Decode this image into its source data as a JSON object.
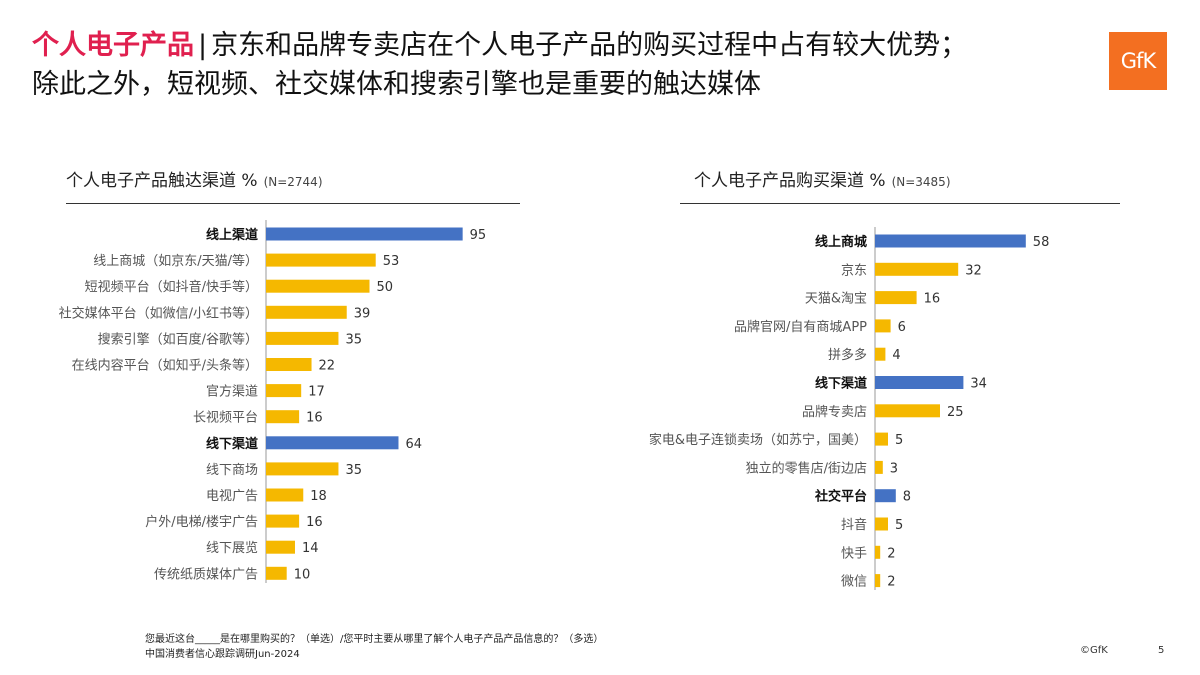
{
  "header": {
    "title_highlight": "个人电子产品",
    "title_separator": "|",
    "title_line1": "京东和品牌专卖店在个人电子产品的购买过程中占有较大优势；",
    "title_line2": "除此之外，短视频、社交媒体和搜索引擎也是重要的触达媒体",
    "logo_text": "GfK"
  },
  "colors": {
    "title_accent": "#e0204f",
    "logo_bg": "#f36f21",
    "category_bar": "#4472c4",
    "item_bar": "#f5b800"
  },
  "footer": {
    "question": "您最近这台_____是在哪里购买的？（单选）/您平时主要从哪里了解个人电子产品产品信息的？（多选）",
    "source": "中国消费者信心跟踪调研Jun-2024",
    "copyright": "©GfK",
    "page_number": "5"
  },
  "chart_data": [
    {
      "type": "bar",
      "orientation": "horizontal",
      "title": "个人电子产品触达渠道 %",
      "sample": "(N=2744)",
      "categories": [
        "线上渠道",
        "线上商城（如京东/天猫/等）",
        "短视频平台（如抖音/快手等）",
        "社交媒体平台（如微信/小红书等）",
        "搜索引擎（如百度/谷歌等）",
        "在线内容平台（如知乎/头条等）",
        "官方渠道",
        "长视频平台",
        "线下渠道",
        "线下商场",
        "电视广告",
        "户外/电梯/楼宇广告",
        "线下展览",
        "传统纸质媒体广告"
      ],
      "values": [
        95,
        53,
        50,
        39,
        35,
        22,
        17,
        16,
        64,
        35,
        18,
        16,
        14,
        10
      ],
      "group_header": [
        true,
        false,
        false,
        false,
        false,
        false,
        false,
        false,
        true,
        false,
        false,
        false,
        false,
        false
      ]
    },
    {
      "type": "bar",
      "orientation": "horizontal",
      "title": "个人电子产品购买渠道 %",
      "sample": "(N=3485)",
      "categories": [
        "线上商城",
        "京东",
        "天猫&淘宝",
        "品牌官网/自有商城APP",
        "拼多多",
        "线下渠道",
        "品牌专卖店",
        "家电&电子连锁卖场（如苏宁，国美）",
        "独立的零售店/街边店",
        "社交平台",
        "抖音",
        "快手",
        "微信"
      ],
      "values": [
        58,
        32,
        16,
        6,
        4,
        34,
        25,
        5,
        3,
        8,
        5,
        2,
        2
      ],
      "group_header": [
        true,
        false,
        false,
        false,
        false,
        true,
        false,
        false,
        false,
        true,
        false,
        false,
        false
      ]
    }
  ]
}
